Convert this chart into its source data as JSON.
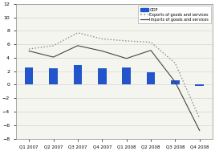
{
  "categories": [
    "Q1 2007",
    "Q2 2007",
    "Q3 2007",
    "Q4 2007",
    "Q1 2008",
    "Q2 2008",
    "Q3 2008",
    "Q4 2008"
  ],
  "gdp_values": [
    2.5,
    2.4,
    2.9,
    2.4,
    2.5,
    1.8,
    0.7,
    -0.2
  ],
  "exports_values": [
    5.3,
    5.8,
    7.7,
    6.8,
    6.5,
    6.3,
    3.2,
    -5.0
  ],
  "imports_values": [
    5.0,
    4.1,
    5.8,
    5.0,
    3.9,
    5.1,
    0.4,
    -6.8
  ],
  "bar_color": "#2255cc",
  "exports_color": "#888888",
  "imports_color": "#444444",
  "background_color": "#ffffff",
  "plot_bg_color": "#f5f5f0",
  "ylim": [
    -8,
    12
  ],
  "yticks": [
    -8,
    -6,
    -4,
    -2,
    0,
    2,
    4,
    6,
    8,
    10,
    12
  ],
  "legend_labels": [
    "GDP",
    "Exports of goods and services",
    "Imports of goods and services"
  ]
}
